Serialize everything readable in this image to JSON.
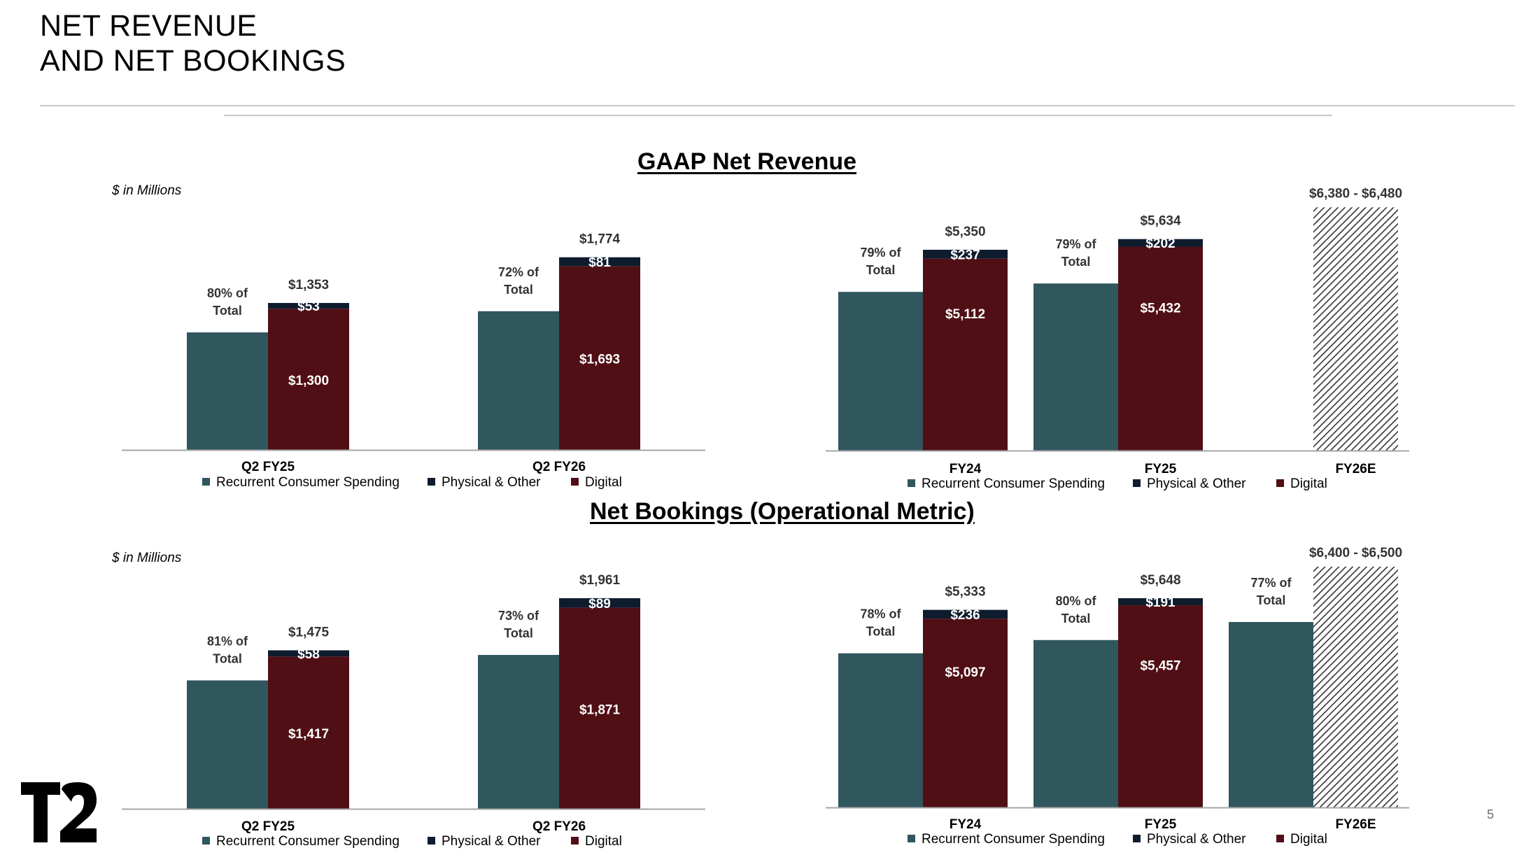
{
  "slide": {
    "title_line1": "NET REVENUE",
    "title_line2": "AND NET BOOKINGS",
    "page_number": "5",
    "logo_text": "T2"
  },
  "sections": {
    "revenue_title": "GAAP Net Revenue",
    "bookings_title": "Net Bookings (Operational Metric)",
    "units_label": "$ in Millions"
  },
  "colors": {
    "recurrent": "#30565e",
    "digital": "#500f15",
    "physical": "#0e1c2e",
    "axis": "#a6a6a6",
    "hatch": "#333333"
  },
  "legend": [
    "Recurrent Consumer Spending",
    "Physical & Other",
    "Digital"
  ],
  "chart_data": [
    {
      "type": "bar",
      "title": "GAAP Net Revenue",
      "categories": [
        "Q2 FY25",
        "Q2 FY26"
      ],
      "series": [
        {
          "name": "Recurrent Consumer Spending",
          "values": [
            1082,
            1277
          ],
          "labels": [
            "80% of Total",
            "72% of Total"
          ]
        },
        {
          "name": "Digital",
          "values": [
            1300,
            1693
          ],
          "labels": [
            "$1,300",
            "$1,693"
          ]
        },
        {
          "name": "Physical & Other",
          "values": [
            53,
            81
          ],
          "labels": [
            "$53",
            "$81"
          ]
        }
      ],
      "totals": [
        "$1,353",
        "$1,774"
      ],
      "total_values": [
        1353,
        1774
      ],
      "ylim": [
        0,
        2000
      ],
      "legend_position": "bottom"
    },
    {
      "type": "bar",
      "title": "GAAP Net Revenue",
      "categories": [
        "FY24",
        "FY25",
        "FY26E"
      ],
      "series": [
        {
          "name": "Recurrent Consumer Spending",
          "values": [
            4227,
            4451,
            null
          ],
          "labels": [
            "79% of Total",
            "79% of Total",
            ""
          ]
        },
        {
          "name": "Digital",
          "values": [
            5112,
            5432,
            null
          ],
          "labels": [
            "$5,112",
            "$5,432",
            ""
          ]
        },
        {
          "name": "Physical & Other",
          "values": [
            237,
            202,
            null
          ],
          "labels": [
            "$237",
            "$202",
            ""
          ]
        }
      ],
      "totals": [
        "$5,350",
        "$5,634",
        "$6,380 - $6,480"
      ],
      "total_values": [
        5350,
        5634,
        6480
      ],
      "guidance_range": [
        6380,
        6480
      ],
      "ylim": [
        0,
        6580
      ],
      "legend_position": "bottom"
    },
    {
      "type": "bar",
      "title": "Net Bookings (Operational Metric)",
      "categories": [
        "Q2 FY25",
        "Q2 FY26"
      ],
      "series": [
        {
          "name": "Recurrent Consumer Spending",
          "values": [
            1195,
            1432
          ],
          "labels": [
            "81% of Total",
            "73% of Total"
          ]
        },
        {
          "name": "Digital",
          "values": [
            1417,
            1871
          ],
          "labels": [
            "$1,417",
            "$1,871"
          ]
        },
        {
          "name": "Physical & Other",
          "values": [
            58,
            89
          ],
          "labels": [
            "$58",
            "$89"
          ]
        }
      ],
      "totals": [
        "$1,475",
        "$1,961"
      ],
      "total_values": [
        1475,
        1961
      ],
      "ylim": [
        0,
        2090
      ],
      "legend_position": "bottom"
    },
    {
      "type": "bar",
      "title": "Net Bookings (Operational Metric)",
      "categories": [
        "FY24",
        "FY25",
        "FY26E"
      ],
      "series": [
        {
          "name": "Recurrent Consumer Spending",
          "values": [
            4160,
            4518,
            5005
          ],
          "labels": [
            "78% of Total",
            "80% of Total",
            "77% of Total"
          ]
        },
        {
          "name": "Digital",
          "values": [
            5097,
            5457,
            null
          ],
          "labels": [
            "$5,097",
            "$5,457",
            ""
          ]
        },
        {
          "name": "Physical & Other",
          "values": [
            236,
            191,
            null
          ],
          "labels": [
            "$236",
            "$191",
            ""
          ]
        }
      ],
      "totals": [
        "$5,333",
        "$5,648",
        "$6,400 - $6,500"
      ],
      "total_values": [
        5333,
        5648,
        6500
      ],
      "guidance_range": [
        6400,
        6500
      ],
      "ylim": [
        0,
        6550
      ],
      "legend_position": "bottom"
    }
  ]
}
